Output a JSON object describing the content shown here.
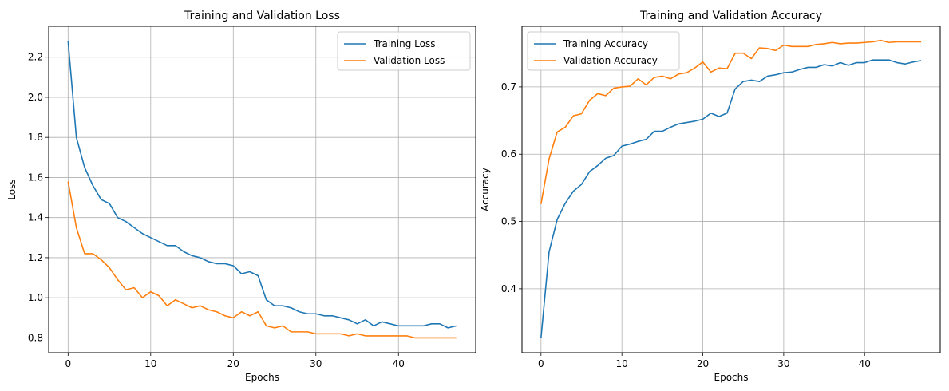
{
  "chart_data": [
    {
      "type": "line",
      "title": "Training and Validation Loss",
      "xlabel": "Epochs",
      "ylabel": "Loss",
      "xlim": [
        -2.35,
        49.35
      ],
      "ylim": [
        0.726,
        2.354
      ],
      "xticks": [
        0,
        10,
        20,
        30,
        40
      ],
      "yticks": [
        0.8,
        1.0,
        1.2,
        1.4,
        1.6,
        1.8,
        2.0,
        2.2
      ],
      "xtick_labels": [
        "0",
        "10",
        "20",
        "30",
        "40"
      ],
      "ytick_labels": [
        "0.8",
        "1.0",
        "1.2",
        "1.4",
        "1.6",
        "1.8",
        "2.0",
        "2.2"
      ],
      "grid": true,
      "legend_position": "upper right",
      "x": [
        0,
        1,
        2,
        3,
        4,
        5,
        6,
        7,
        8,
        9,
        10,
        11,
        12,
        13,
        14,
        15,
        16,
        17,
        18,
        19,
        20,
        21,
        22,
        23,
        24,
        25,
        26,
        27,
        28,
        29,
        30,
        31,
        32,
        33,
        34,
        35,
        36,
        37,
        38,
        39,
        40,
        41,
        42,
        43,
        44,
        45,
        46,
        47
      ],
      "series": [
        {
          "name": "Training Loss",
          "color": "#1f77b4",
          "values": [
            2.28,
            1.8,
            1.65,
            1.56,
            1.49,
            1.47,
            1.4,
            1.38,
            1.35,
            1.32,
            1.3,
            1.28,
            1.26,
            1.26,
            1.23,
            1.21,
            1.2,
            1.18,
            1.17,
            1.17,
            1.16,
            1.12,
            1.13,
            1.11,
            0.99,
            0.96,
            0.96,
            0.95,
            0.93,
            0.92,
            0.92,
            0.91,
            0.91,
            0.9,
            0.89,
            0.87,
            0.89,
            0.86,
            0.88,
            0.87,
            0.86,
            0.86,
            0.86,
            0.86,
            0.87,
            0.87,
            0.85,
            0.86
          ]
        },
        {
          "name": "Validation Loss",
          "color": "#ff7f0e",
          "values": [
            1.58,
            1.35,
            1.22,
            1.22,
            1.19,
            1.15,
            1.09,
            1.04,
            1.05,
            1.0,
            1.03,
            1.01,
            0.96,
            0.99,
            0.97,
            0.95,
            0.96,
            0.94,
            0.93,
            0.91,
            0.9,
            0.93,
            0.91,
            0.93,
            0.86,
            0.85,
            0.86,
            0.83,
            0.83,
            0.83,
            0.82,
            0.82,
            0.82,
            0.82,
            0.81,
            0.82,
            0.81,
            0.81,
            0.81,
            0.81,
            0.81,
            0.81,
            0.8,
            0.8,
            0.8,
            0.8,
            0.8,
            0.8
          ]
        }
      ]
    },
    {
      "type": "line",
      "title": "Training and Validation Accuracy",
      "xlabel": "Epochs",
      "ylabel": "Accuracy",
      "xlim": [
        -2.35,
        49.35
      ],
      "ylim": [
        0.305,
        0.79
      ],
      "xticks": [
        0,
        10,
        20,
        30,
        40
      ],
      "yticks": [
        0.4,
        0.5,
        0.6,
        0.7
      ],
      "xtick_labels": [
        "0",
        "10",
        "20",
        "30",
        "40"
      ],
      "ytick_labels": [
        "0.4",
        "0.5",
        "0.6",
        "0.7"
      ],
      "grid": true,
      "legend_position": "upper left",
      "x": [
        0,
        1,
        2,
        3,
        4,
        5,
        6,
        7,
        8,
        9,
        10,
        11,
        12,
        13,
        14,
        15,
        16,
        17,
        18,
        19,
        20,
        21,
        22,
        23,
        24,
        25,
        26,
        27,
        28,
        29,
        30,
        31,
        32,
        33,
        34,
        35,
        36,
        37,
        38,
        39,
        40,
        41,
        42,
        43,
        44,
        45,
        46,
        47
      ],
      "series": [
        {
          "name": "Training Accuracy",
          "color": "#1f77b4",
          "values": [
            0.327,
            0.455,
            0.503,
            0.527,
            0.545,
            0.555,
            0.574,
            0.583,
            0.594,
            0.598,
            0.612,
            0.615,
            0.619,
            0.622,
            0.634,
            0.634,
            0.64,
            0.645,
            0.647,
            0.649,
            0.652,
            0.661,
            0.656,
            0.661,
            0.697,
            0.708,
            0.71,
            0.708,
            0.716,
            0.718,
            0.721,
            0.722,
            0.726,
            0.729,
            0.729,
            0.733,
            0.731,
            0.736,
            0.732,
            0.736,
            0.736,
            0.74,
            0.74,
            0.74,
            0.736,
            0.734,
            0.737,
            0.739
          ]
        },
        {
          "name": "Validation Accuracy",
          "color": "#ff7f0e",
          "values": [
            0.526,
            0.593,
            0.633,
            0.64,
            0.657,
            0.66,
            0.68,
            0.69,
            0.687,
            0.698,
            0.7,
            0.701,
            0.712,
            0.703,
            0.714,
            0.716,
            0.712,
            0.719,
            0.721,
            0.728,
            0.737,
            0.722,
            0.728,
            0.727,
            0.75,
            0.75,
            0.742,
            0.758,
            0.757,
            0.754,
            0.762,
            0.76,
            0.76,
            0.76,
            0.763,
            0.764,
            0.766,
            0.764,
            0.765,
            0.765,
            0.766,
            0.767,
            0.769,
            0.766,
            0.767,
            0.767,
            0.767,
            0.767
          ]
        }
      ]
    }
  ]
}
